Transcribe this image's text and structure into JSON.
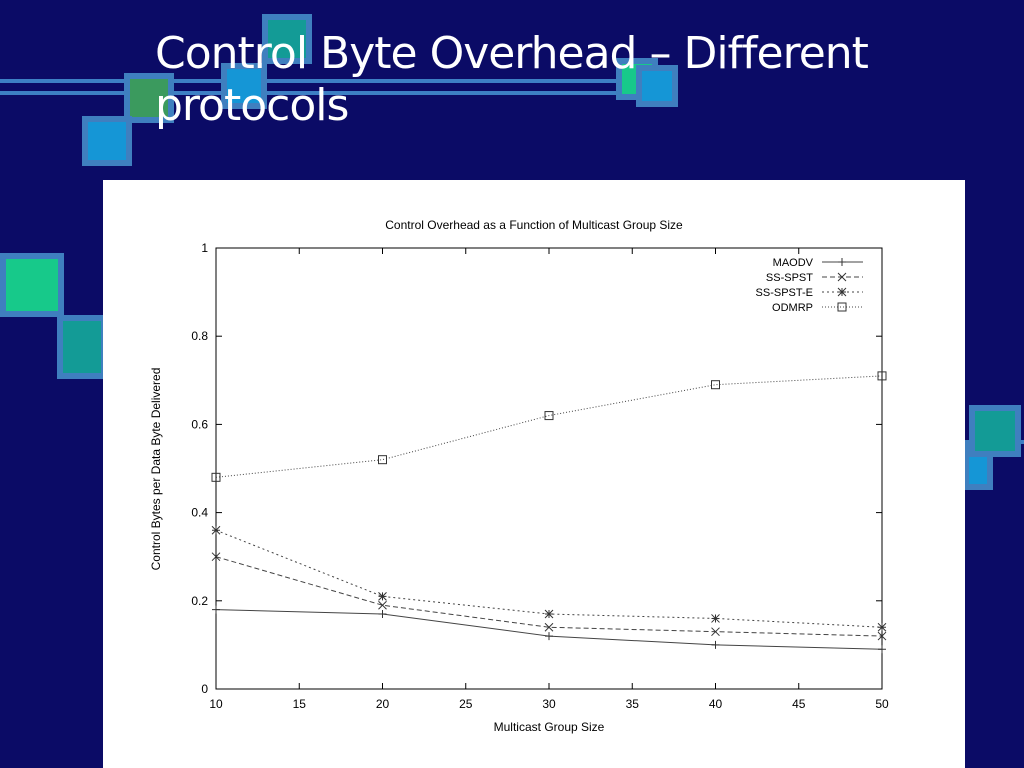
{
  "slide": {
    "title_line1": "Control Byte Overhead – Different",
    "title_line2": "protocols"
  },
  "colors": {
    "background": "#0b0b66",
    "deco_line": "#3d7fc4",
    "square_border": "#3f7fbf",
    "square_teal": "#139b96",
    "square_green": "#17c98a",
    "square_blue": "#1596d6",
    "square_olive": "#3b9a5e"
  },
  "chart_data": {
    "type": "line",
    "title": "Control Overhead as a Function of Multicast Group Size",
    "xlabel": "Multicast Group Size",
    "ylabel": "Control Bytes per Data Byte Delivered",
    "xlim": [
      10,
      50
    ],
    "ylim": [
      0,
      1
    ],
    "xticks": [
      10,
      15,
      20,
      25,
      30,
      35,
      40,
      45,
      50
    ],
    "yticks": [
      0,
      0.2,
      0.4,
      0.6,
      0.8,
      1
    ],
    "ytick_labels": [
      "0",
      "0.2",
      "0.4",
      "0.6",
      "0.8",
      "1"
    ],
    "legend_position": "top-right",
    "grid": false,
    "series": [
      {
        "name": "MAODV",
        "marker": "+",
        "dash": "",
        "x": [
          10,
          20,
          30,
          40,
          50
        ],
        "values": [
          0.18,
          0.17,
          0.12,
          0.1,
          0.09
        ]
      },
      {
        "name": "SS-SPST",
        "marker": "x",
        "dash": "5,3",
        "x": [
          10,
          20,
          30,
          40,
          50
        ],
        "values": [
          0.3,
          0.19,
          0.14,
          0.13,
          0.12
        ]
      },
      {
        "name": "SS-SPST-E",
        "marker": "*",
        "dash": "2,3",
        "x": [
          10,
          20,
          30,
          40,
          50
        ],
        "values": [
          0.36,
          0.21,
          0.17,
          0.16,
          0.14
        ]
      },
      {
        "name": "ODMRP",
        "marker": "square",
        "dash": "1,2",
        "x": [
          10,
          20,
          30,
          40,
          50
        ],
        "values": [
          0.48,
          0.52,
          0.62,
          0.69,
          0.71
        ]
      }
    ]
  }
}
